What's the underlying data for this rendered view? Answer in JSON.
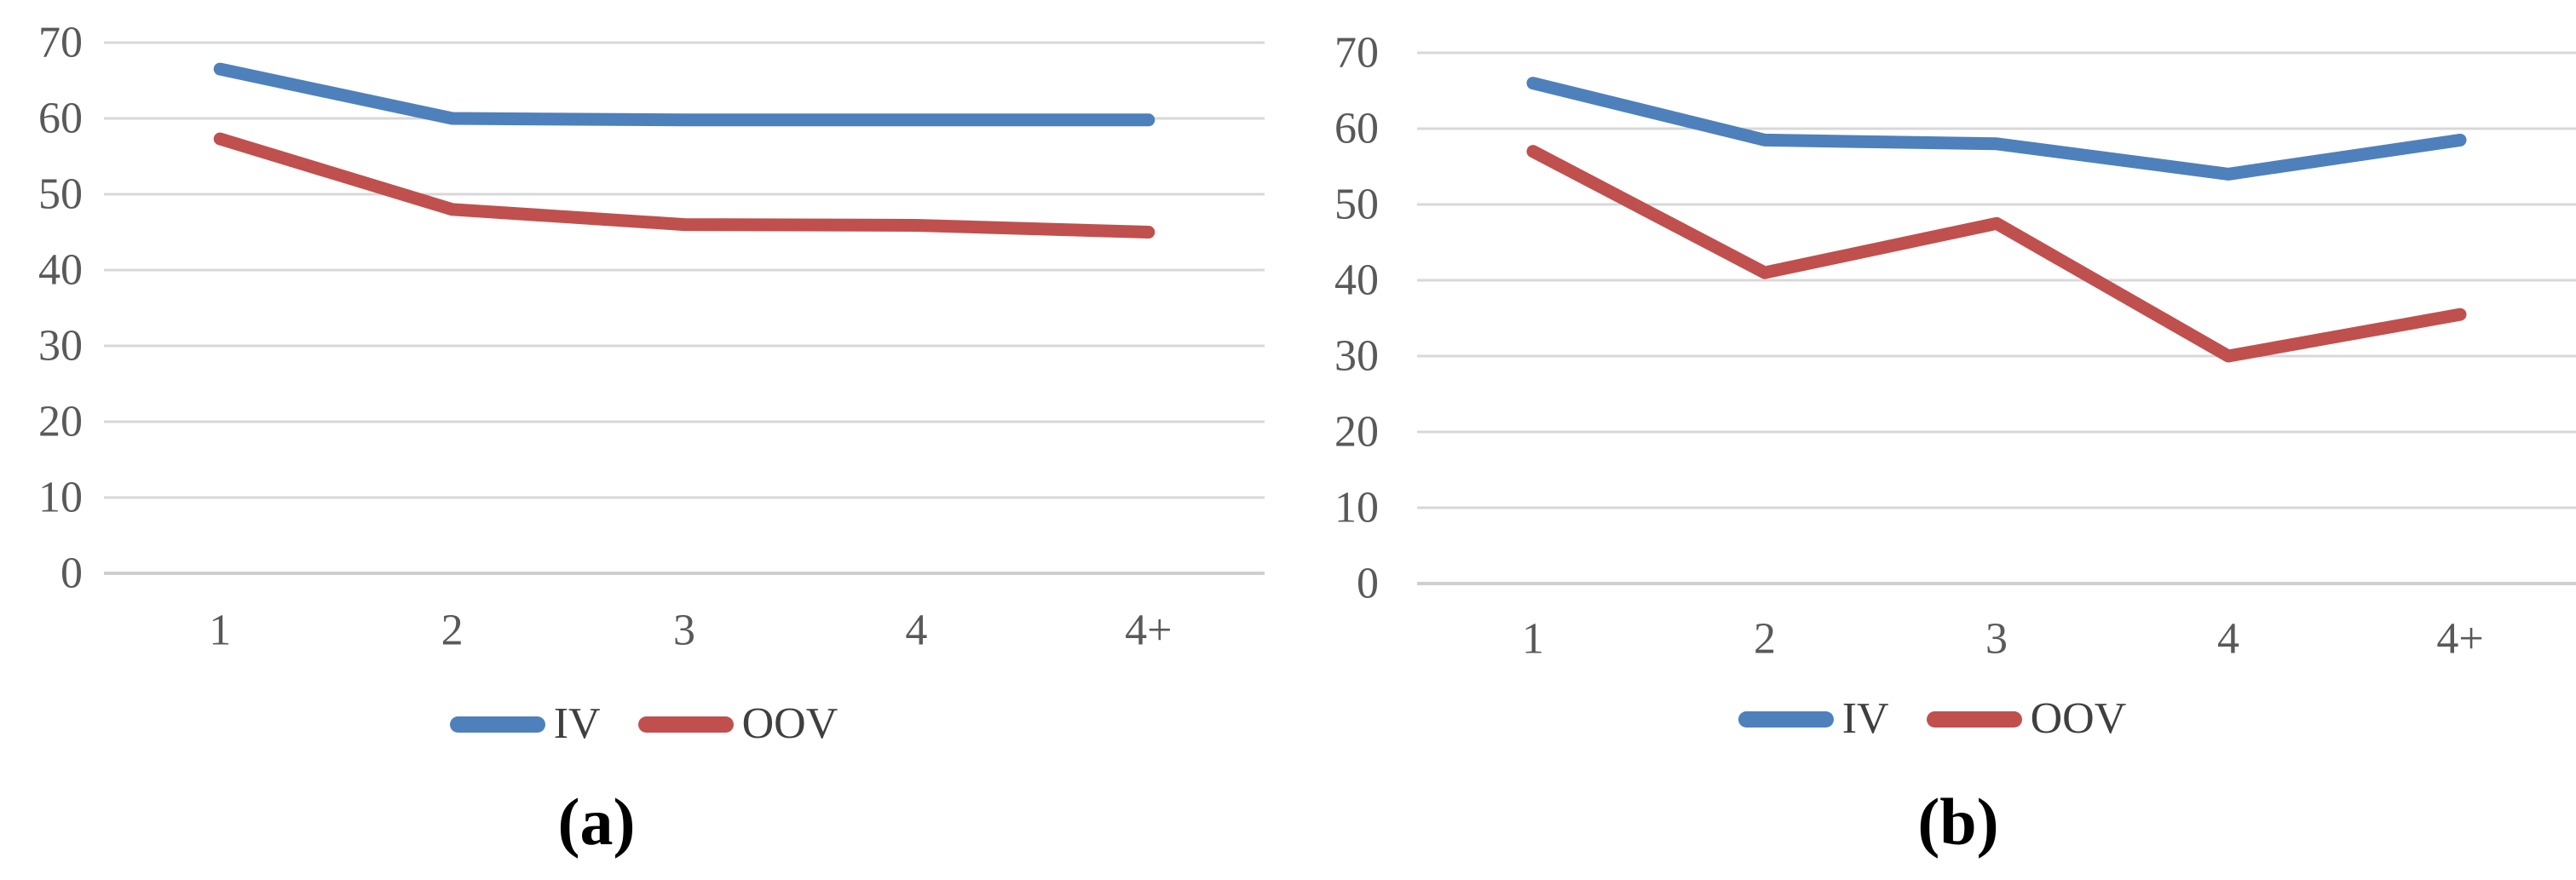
{
  "figure": {
    "background": "#ffffff",
    "panels": [
      {
        "caption": "(a)"
      },
      {
        "caption": "(b)"
      }
    ]
  },
  "colors": {
    "iv_line": "#4E80BC",
    "oov_line": "#C0504D",
    "gridline": "#D8D8D8",
    "baseline": "#CFCFCF",
    "axis_label": "#595959",
    "legend_text": "#3F3F3F",
    "caption_text": "#000000"
  },
  "chart_data": [
    {
      "type": "line",
      "panel_label": "(a)",
      "categories": [
        "1",
        "2",
        "3",
        "4",
        "4+"
      ],
      "series": [
        {
          "name": "IV",
          "color": "#4E80BC",
          "values": [
            66.5,
            60,
            59.8,
            59.8,
            59.8
          ]
        },
        {
          "name": "OOV",
          "color": "#C0504D",
          "values": [
            57.3,
            48,
            46,
            45.9,
            45
          ]
        }
      ],
      "title": "",
      "xlabel": "",
      "ylabel": "",
      "ylim": [
        0,
        70
      ],
      "yticks": [
        0,
        10,
        20,
        30,
        40,
        50,
        60,
        70
      ],
      "grid": true,
      "legend_position": "bottom",
      "legend_labels": [
        "IV",
        "OOV"
      ]
    },
    {
      "type": "line",
      "panel_label": "(b)",
      "categories": [
        "1",
        "2",
        "3",
        "4",
        "4+"
      ],
      "series": [
        {
          "name": "IV",
          "color": "#4E80BC",
          "values": [
            66,
            58.5,
            58,
            54,
            58.5
          ]
        },
        {
          "name": "OOV",
          "color": "#C0504D",
          "values": [
            57,
            41,
            47.5,
            30,
            35.5
          ]
        }
      ],
      "title": "",
      "xlabel": "",
      "ylabel": "",
      "ylim": [
        0,
        70
      ],
      "yticks": [
        0,
        10,
        20,
        30,
        40,
        50,
        60,
        70
      ],
      "grid": true,
      "legend_position": "bottom",
      "legend_labels": [
        "IV",
        "OOV"
      ]
    }
  ]
}
